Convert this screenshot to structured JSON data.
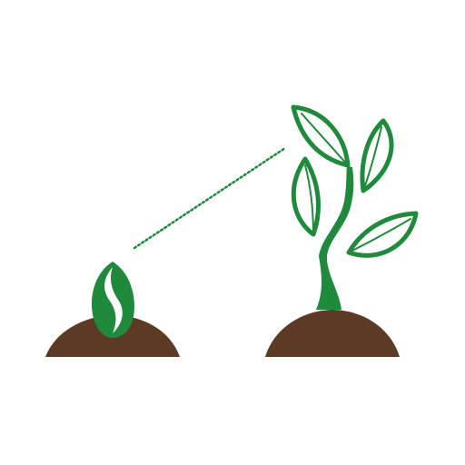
{
  "illustration": {
    "colors": {
      "background": "#ffffff",
      "soil": "#5d3a24",
      "plant_green": "#1f8a3b",
      "seed_highlight": "#ffffff",
      "growth_dots": "#1f8a3b"
    },
    "icons": {
      "left": "seed-sprout-icon",
      "right": "grown-plant-icon",
      "connector": "dotted-growth-line"
    }
  }
}
